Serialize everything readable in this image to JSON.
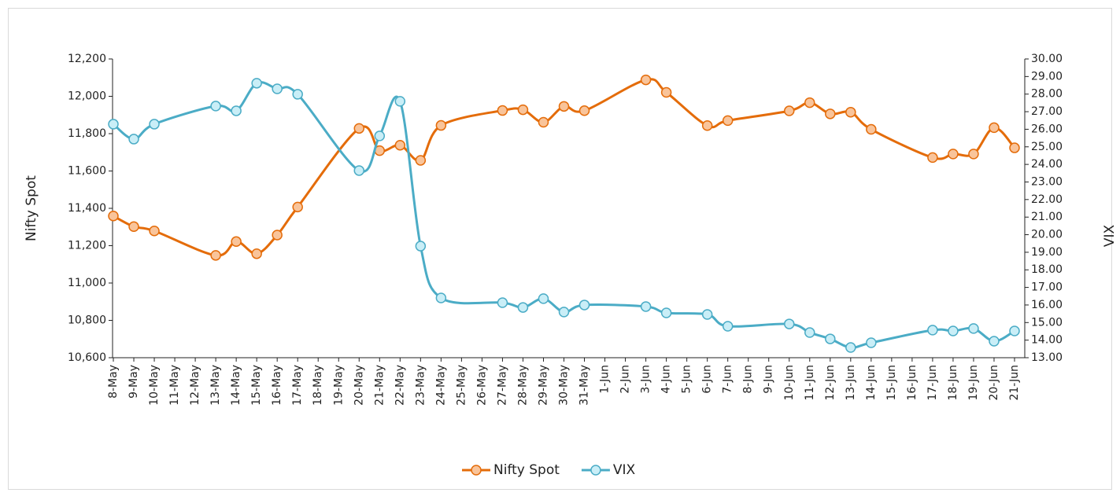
{
  "chart_data": {
    "type": "line",
    "y_axis_label": "Nifty Spot",
    "y2_axis_label": "VIX",
    "categories": [
      "8-May",
      "9-May",
      "10-May",
      "11-May",
      "12-May",
      "13-May",
      "14-May",
      "15-May",
      "16-May",
      "17-May",
      "18-May",
      "19-May",
      "20-May",
      "21-May",
      "22-May",
      "23-May",
      "24-May",
      "25-May",
      "26-May",
      "27-May",
      "28-May",
      "29-May",
      "30-May",
      "31-May",
      "1-Jun",
      "2-Jun",
      "3-Jun",
      "4-Jun",
      "5-Jun",
      "6-Jun",
      "7-Jun",
      "8-Jun",
      "9-Jun",
      "10-Jun",
      "11-Jun",
      "12-Jun",
      "13-Jun",
      "14-Jun",
      "15-Jun",
      "16-Jun",
      "17-Jun",
      "18-Jun",
      "19-Jun",
      "20-Jun",
      "21-Jun"
    ],
    "connect_gaps": true,
    "smooth": true,
    "series": [
      {
        "name": "Nifty Spot",
        "color": "#e46c0a",
        "marker_color": "#f9c49a",
        "axis": "y",
        "values": [
          11359,
          11302,
          11279,
          null,
          null,
          11148,
          11222,
          11157,
          11257,
          11407,
          null,
          null,
          11828,
          11709,
          11738,
          11657,
          11844,
          null,
          null,
          11924,
          11928,
          11861,
          11946,
          11923,
          null,
          null,
          12088,
          12021,
          null,
          11843,
          11870,
          null,
          null,
          11922,
          11966,
          11906,
          11915,
          11823,
          null,
          null,
          11672,
          11691,
          11691,
          11832,
          11724
        ]
      },
      {
        "name": "VIX",
        "color": "#4bacc6",
        "marker_color": "#c9eef7",
        "axis": "y2",
        "values": [
          26.29,
          25.44,
          26.29,
          null,
          null,
          27.32,
          27.05,
          28.62,
          28.3,
          27.99,
          null,
          null,
          23.65,
          25.62,
          27.59,
          19.35,
          16.4,
          null,
          null,
          16.13,
          15.86,
          16.36,
          15.6,
          16.0,
          null,
          null,
          15.91,
          15.55,
          null,
          15.46,
          14.79,
          null,
          null,
          14.92,
          14.43,
          14.07,
          13.58,
          13.85,
          null,
          null,
          14.57,
          14.52,
          14.66,
          13.94,
          14.52
        ]
      }
    ],
    "ylim": [
      10600,
      12200
    ],
    "yticks": [
      {
        "value": 10600,
        "label": "10,600"
      },
      {
        "value": 10800,
        "label": "10,800"
      },
      {
        "value": 11000,
        "label": "11,000"
      },
      {
        "value": 11200,
        "label": "11,200"
      },
      {
        "value": 11400,
        "label": "11,400"
      },
      {
        "value": 11600,
        "label": "11,600"
      },
      {
        "value": 11800,
        "label": "11,800"
      },
      {
        "value": 12000,
        "label": "12,000"
      },
      {
        "value": 12200,
        "label": "12,200"
      }
    ],
    "y2lim": [
      13,
      30
    ],
    "y2ticks": [
      {
        "value": 13,
        "label": "13.00"
      },
      {
        "value": 14,
        "label": "14.00"
      },
      {
        "value": 15,
        "label": "15.00"
      },
      {
        "value": 16,
        "label": "16.00"
      },
      {
        "value": 17,
        "label": "17.00"
      },
      {
        "value": 18,
        "label": "18.00"
      },
      {
        "value": 19,
        "label": "19.00"
      },
      {
        "value": 20,
        "label": "20.00"
      },
      {
        "value": 21,
        "label": "21.00"
      },
      {
        "value": 22,
        "label": "22.00"
      },
      {
        "value": 23,
        "label": "23.00"
      },
      {
        "value": 24,
        "label": "24.00"
      },
      {
        "value": 25,
        "label": "25.00"
      },
      {
        "value": 26,
        "label": "26.00"
      },
      {
        "value": 27,
        "label": "27.00"
      },
      {
        "value": 28,
        "label": "28.00"
      },
      {
        "value": 29,
        "label": "29.00"
      },
      {
        "value": 30,
        "label": "30.00"
      }
    ],
    "grid": false,
    "legend": "bottom"
  }
}
